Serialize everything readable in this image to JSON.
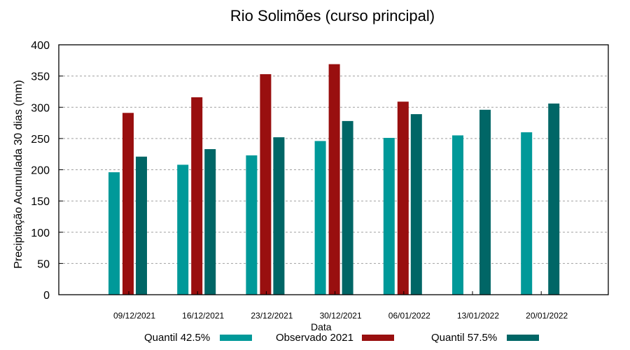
{
  "chart_data": {
    "type": "bar",
    "title": "Rio Solimões (curso principal)",
    "xlabel": "Data",
    "ylabel": "Precipitação Acumulada 30 dias (mm)",
    "ylim": [
      0,
      400
    ],
    "yticks": [
      0,
      50,
      100,
      150,
      200,
      250,
      300,
      350,
      400
    ],
    "grid": true,
    "legend_position": "bottom",
    "categories": [
      "09/12/2021",
      "16/12/2021",
      "23/12/2021",
      "30/12/2021",
      "06/01/2022",
      "13/01/2022",
      "20/01/2022"
    ],
    "series": [
      {
        "name": "Quantil 42.5%",
        "color": "#009999",
        "values": [
          196,
          208,
          223,
          246,
          251,
          255,
          260
        ]
      },
      {
        "name": "Observado 2021",
        "color": "#990f0f",
        "values": [
          291,
          316,
          353,
          369,
          309,
          null,
          null
        ]
      },
      {
        "name": "Quantil 57.5%",
        "color": "#006666",
        "values": [
          221,
          233,
          252,
          278,
          289,
          296,
          306
        ]
      }
    ]
  },
  "legend": {
    "items": [
      {
        "label": "Quantil 42.5%",
        "color": "#009999"
      },
      {
        "label": "Observado 2021",
        "color": "#990f0f"
      },
      {
        "label": "Quantil 57.5%",
        "color": "#006666"
      }
    ]
  }
}
